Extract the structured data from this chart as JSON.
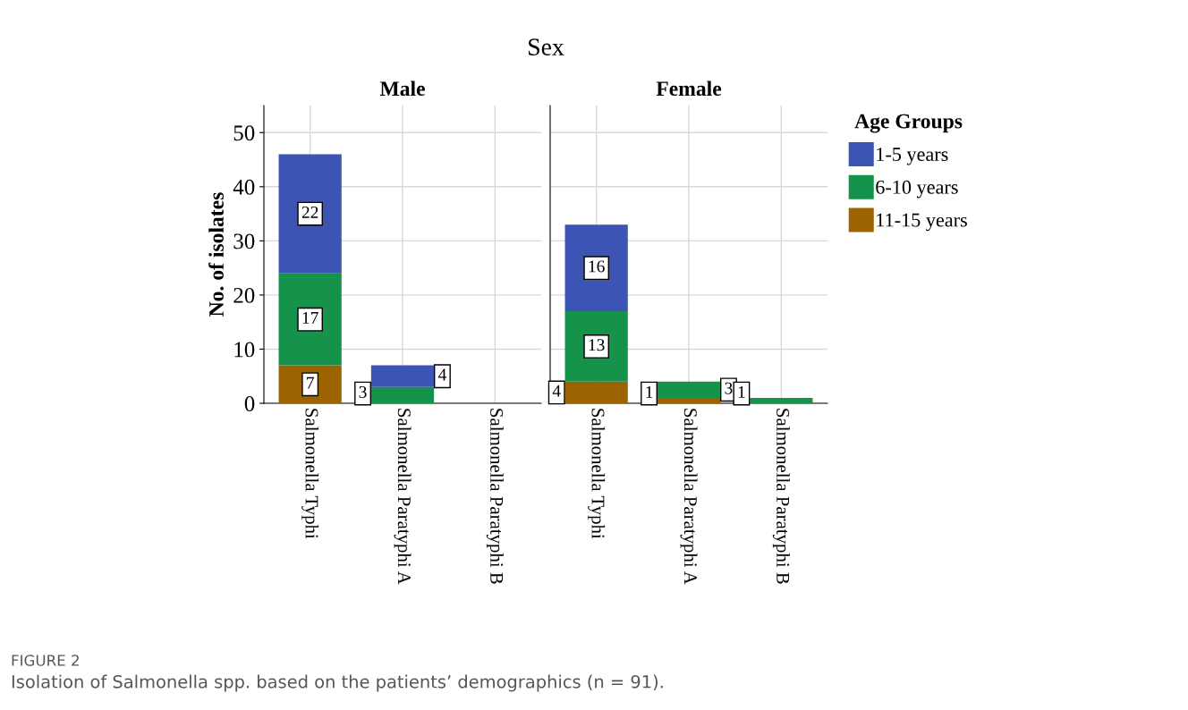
{
  "chart_data": [
    {
      "type": "bar",
      "title": "Male",
      "ylabel": "No. of isolates",
      "stacked": true,
      "categories": [
        "Salmonella Typhi",
        "Salmonella Paratyphi A",
        "Salmonella Paratyphi B"
      ],
      "series": [
        {
          "color": "#9c6400",
          "values": [
            7,
            0,
            0
          ],
          "value_labels": [
            "7",
            null,
            null
          ]
        },
        {
          "color": "#16934a",
          "values": [
            17,
            3,
            0
          ],
          "value_labels": [
            "17",
            "3",
            null
          ]
        },
        {
          "color": "#3c55b4",
          "values": [
            22,
            4,
            0
          ],
          "value_labels": [
            "22",
            "4",
            null
          ]
        }
      ],
      "ylim": [
        0,
        55
      ],
      "yticks": [
        0,
        10,
        20,
        30,
        40,
        50
      ],
      "grid": true,
      "annotations": [
        "Sex",
        "FIGURE 2",
        "Isolation of Salmonella spp. based on the patients’ demographics (n = 91)."
      ]
    },
    {
      "type": "bar",
      "title": "Female",
      "stacked": true,
      "categories": [
        "Salmonella Typhi",
        "Salmonella Paratyphi A",
        "Salmonella Paratyphi B"
      ],
      "series": [
        {
          "name": "11-15 years",
          "color": "#9c6400",
          "values": [
            4,
            1,
            0
          ],
          "value_labels": [
            "4",
            "1",
            null
          ]
        },
        {
          "name": "6-10 years",
          "color": "#16934a",
          "values": [
            13,
            3,
            1
          ],
          "value_labels": [
            "13",
            "3",
            "1"
          ]
        },
        {
          "name": "1-5 years",
          "color": "#3c55b4",
          "values": [
            16,
            0,
            0
          ],
          "value_labels": [
            "16",
            null,
            null
          ]
        }
      ],
      "ylim": [
        0,
        55
      ],
      "yticks": [
        0,
        10,
        20,
        30,
        40,
        50
      ],
      "grid": true,
      "tick_labels": "x",
      "legend": "right",
      "legend_title": "Age Groups"
    }
  ]
}
